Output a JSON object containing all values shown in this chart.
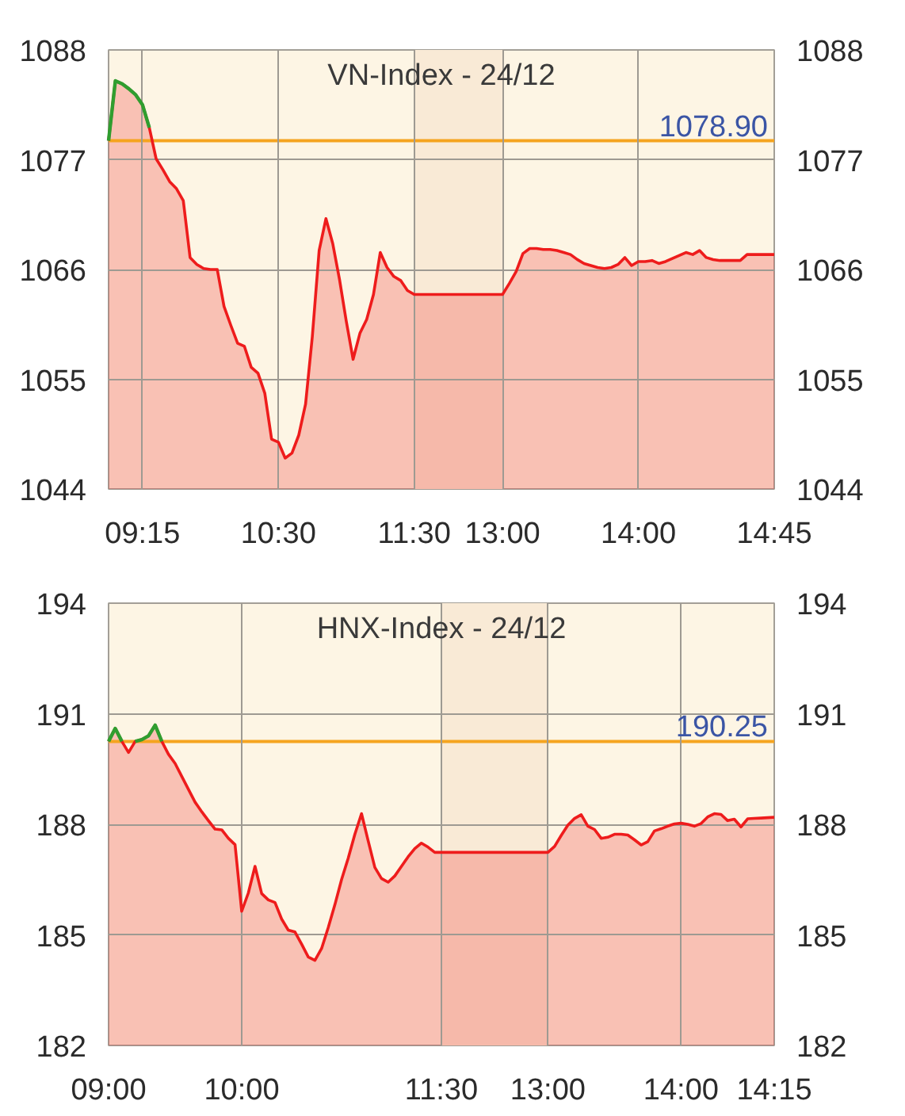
{
  "chart_data": [
    {
      "type": "area",
      "title": "VN-Index - 24/12",
      "categories": [
        null,
        null,
        null,
        null,
        null,
        "09:15",
        null,
        null,
        null,
        null,
        null,
        null,
        null,
        null,
        null,
        null,
        null,
        null,
        null,
        null,
        null,
        null,
        null,
        null,
        null,
        "10:30",
        null,
        null,
        null,
        null,
        null,
        null,
        null,
        null,
        null,
        null,
        null,
        null,
        null,
        null,
        null,
        null,
        null,
        null,
        null,
        "11:30",
        null,
        null,
        null,
        null,
        null,
        null,
        null,
        null,
        null,
        null,
        null,
        null,
        "13:00",
        null,
        null,
        null,
        null,
        null,
        null,
        null,
        null,
        null,
        null,
        null,
        null,
        null,
        null,
        null,
        null,
        null,
        null,
        null,
        "14:00",
        null,
        null,
        null,
        null,
        null,
        null,
        null,
        null,
        null,
        null,
        null,
        null,
        null,
        null,
        null,
        null,
        null,
        null,
        null,
        "14:45"
      ],
      "ylim": [
        1044,
        1088
      ],
      "yticks": [
        1044,
        1055,
        1066,
        1077,
        1088
      ],
      "y2lim": [
        1044,
        1088
      ],
      "y2ticks": [
        1044,
        1055,
        1066,
        1077,
        1088
      ],
      "grid": true,
      "ref_lines": [
        {
          "axis": "y",
          "value": 1078.9,
          "label": "1078.90",
          "color": "#f5a41f"
        }
      ],
      "bands": [
        {
          "axis": "x",
          "from": "11:30",
          "to": "13:00",
          "color": "#f9ead6"
        }
      ],
      "series": [
        {
          "color": "#ee1c1c",
          "values": [
            1078.9,
            1084.9,
            1084.6,
            1084.1,
            1083.5,
            1082.5,
            1080.2,
            1077.1,
            1076.0,
            1074.8,
            1074.1,
            1072.9,
            1067.2,
            1066.5,
            1066.1,
            1066.0,
            1066.0,
            1062.3,
            1060.4,
            1058.6,
            1058.3,
            1056.2,
            1055.6,
            1053.6,
            1049.0,
            1048.7,
            1047.1,
            1047.6,
            1049.4,
            1052.5,
            1059.3,
            1067.9,
            1071.1,
            1068.6,
            1065.0,
            1060.8,
            1057.0,
            1059.6,
            1061.0,
            1063.5,
            1067.7,
            1066.2,
            1065.3,
            1064.9,
            1063.9,
            1063.5,
            1063.5,
            1063.5,
            1063.5,
            1063.5,
            1063.5,
            1063.5,
            1063.5,
            1063.5,
            1063.5,
            1063.5,
            1063.5,
            1063.5,
            1063.5,
            1064.6,
            1065.8,
            1067.6,
            1068.1,
            1068.1,
            1068.0,
            1068.0,
            1067.9,
            1067.7,
            1067.5,
            1067.0,
            1066.6,
            1066.4,
            1066.2,
            1066.1,
            1066.2,
            1066.5,
            1067.2,
            1066.4,
            1066.8,
            1066.8,
            1066.9,
            1066.6,
            1066.8,
            1067.1,
            1067.4,
            1067.7,
            1067.5,
            1067.9,
            1067.2,
            1067.0,
            1066.9,
            1066.9,
            1066.9,
            1066.9,
            1067.5,
            1067.5,
            1067.5,
            1067.5,
            1067.5
          ]
        },
        {
          "type": "line",
          "color": "#2f9e2f",
          "values": [
            1078.9,
            1084.9,
            1084.6,
            1084.1,
            1083.5,
            1082.5,
            1080.2,
            null,
            null,
            null,
            null,
            null,
            null,
            null,
            null,
            null,
            null,
            null,
            null,
            null,
            null,
            null,
            null,
            null,
            null,
            null,
            null,
            null,
            null,
            null,
            null,
            null,
            null,
            null,
            null,
            null,
            null,
            null,
            null,
            null,
            null,
            null,
            null,
            null,
            null,
            null,
            null,
            null,
            null,
            null,
            null,
            null,
            null,
            null,
            null,
            null,
            null,
            null,
            null,
            null,
            null,
            null,
            null,
            null,
            null,
            null,
            null,
            null,
            null,
            null,
            null,
            null,
            null,
            null,
            null,
            null,
            null,
            null,
            null,
            null,
            null,
            null,
            null,
            null,
            null,
            null,
            null,
            null,
            null,
            null,
            null,
            null,
            null,
            null,
            null,
            null,
            null,
            null,
            null
          ]
        }
      ]
    },
    {
      "type": "area",
      "title": "HNX-Index - 24/12",
      "categories": [
        "09:00",
        null,
        null,
        null,
        null,
        null,
        null,
        null,
        null,
        null,
        null,
        null,
        null,
        null,
        null,
        null,
        null,
        null,
        null,
        null,
        "10:00",
        null,
        null,
        null,
        null,
        null,
        null,
        null,
        null,
        null,
        null,
        null,
        null,
        null,
        null,
        null,
        null,
        null,
        null,
        null,
        null,
        null,
        null,
        null,
        null,
        null,
        null,
        null,
        null,
        null,
        "11:30",
        null,
        null,
        null,
        null,
        null,
        null,
        null,
        null,
        null,
        null,
        null,
        null,
        null,
        null,
        null,
        "13:00",
        null,
        null,
        null,
        null,
        null,
        null,
        null,
        null,
        null,
        null,
        null,
        null,
        null,
        null,
        null,
        null,
        null,
        null,
        null,
        "14:00",
        null,
        null,
        null,
        null,
        null,
        null,
        null,
        null,
        null,
        null,
        null,
        null,
        null,
        "14:15"
      ],
      "ylim": [
        182,
        194
      ],
      "yticks": [
        182,
        185,
        188,
        191,
        194
      ],
      "y2lim": [
        182,
        194
      ],
      "y2ticks": [
        182,
        185,
        188,
        191,
        194
      ],
      "grid": true,
      "ref_lines": [
        {
          "axis": "y",
          "value": 190.25,
          "label": "190.25",
          "color": "#f5a41f"
        }
      ],
      "bands": [
        {
          "axis": "x",
          "from": "11:30",
          "to": "13:00",
          "color": "#f9ead6"
        }
      ],
      "series": [
        {
          "color": "#ee1c1c",
          "values": [
            190.25,
            190.6,
            190.25,
            189.95,
            190.25,
            190.3,
            190.4,
            190.69,
            190.25,
            189.9,
            189.65,
            189.3,
            188.95,
            188.6,
            188.34,
            188.1,
            187.87,
            187.85,
            187.62,
            187.45,
            185.64,
            186.14,
            186.86,
            186.12,
            185.95,
            185.88,
            185.43,
            185.13,
            185.08,
            184.75,
            184.4,
            184.31,
            184.63,
            185.2,
            185.82,
            186.5,
            187.08,
            187.73,
            188.29,
            187.55,
            186.83,
            186.53,
            186.43,
            186.6,
            186.86,
            187.12,
            187.34,
            187.49,
            187.38,
            187.24,
            187.24,
            187.24,
            187.24,
            187.24,
            187.24,
            187.24,
            187.24,
            187.24,
            187.24,
            187.24,
            187.24,
            187.24,
            187.24,
            187.24,
            187.24,
            187.24,
            187.24,
            187.4,
            187.7,
            187.98,
            188.16,
            188.26,
            187.95,
            187.86,
            187.62,
            187.65,
            187.73,
            187.73,
            187.71,
            187.58,
            187.44,
            187.53,
            187.82,
            187.88,
            187.95,
            188.01,
            188.03,
            188.0,
            187.95,
            188.02,
            188.2,
            188.29,
            188.27,
            188.1,
            188.14,
            187.93,
            188.15,
            188.16,
            188.17,
            188.18,
            188.19
          ]
        },
        {
          "type": "line",
          "color": "#2f9e2f",
          "values": [
            190.25,
            190.6,
            190.25,
            null,
            null,
            null,
            null,
            null,
            null,
            null,
            null,
            null,
            null,
            null,
            null,
            null,
            null,
            null,
            null,
            null,
            null,
            null,
            null,
            null,
            null,
            null,
            null,
            null,
            null,
            null,
            null,
            null,
            null,
            null,
            null,
            null,
            null,
            null,
            null,
            null,
            null,
            null,
            null,
            null,
            null,
            null,
            null,
            null,
            null,
            null,
            null,
            null,
            null,
            null,
            null,
            null,
            null,
            null,
            null,
            null,
            null,
            null,
            null,
            null,
            null,
            null,
            null,
            null,
            null,
            null,
            null,
            null,
            null,
            null,
            null,
            null,
            null,
            null,
            null,
            null,
            null,
            null,
            null,
            null,
            null,
            null,
            null,
            null,
            null,
            null,
            null,
            null,
            null,
            null,
            null,
            null,
            null,
            null,
            null,
            null,
            null
          ]
        },
        {
          "type": "line",
          "color": "#2f9e2f",
          "values": [
            null,
            null,
            null,
            null,
            190.25,
            190.3,
            190.4,
            190.69,
            190.25,
            null,
            null,
            null,
            null,
            null,
            null,
            null,
            null,
            null,
            null,
            null,
            null,
            null,
            null,
            null,
            null,
            null,
            null,
            null,
            null,
            null,
            null,
            null,
            null,
            null,
            null,
            null,
            null,
            null,
            null,
            null,
            null,
            null,
            null,
            null,
            null,
            null,
            null,
            null,
            null,
            null,
            null,
            null,
            null,
            null,
            null,
            null,
            null,
            null,
            null,
            null,
            null,
            null,
            null,
            null,
            null,
            null,
            null,
            null,
            null,
            null,
            null,
            null,
            null,
            null,
            null,
            null,
            null,
            null,
            null,
            null,
            null,
            null,
            null,
            null,
            null,
            null,
            null,
            null,
            null,
            null,
            null,
            null,
            null,
            null,
            null,
            null,
            null,
            null,
            null,
            null,
            null
          ]
        }
      ]
    }
  ]
}
